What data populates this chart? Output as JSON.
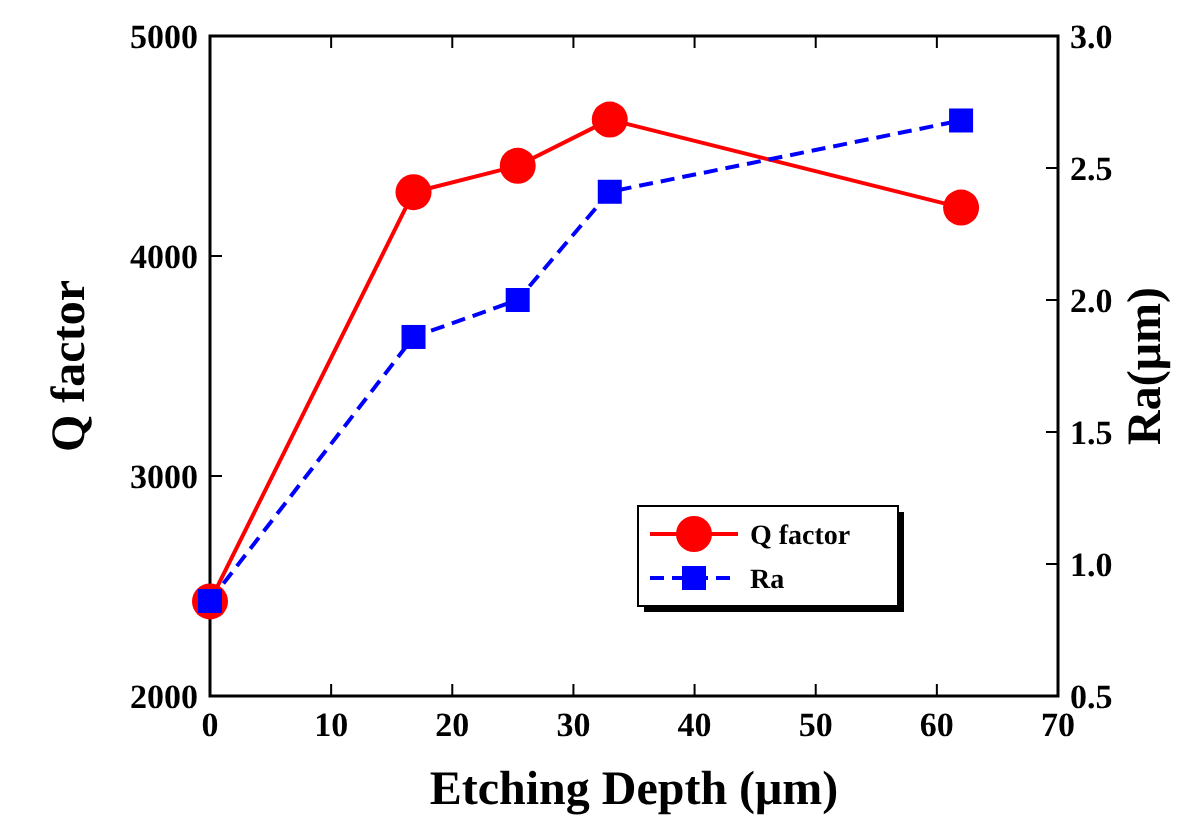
{
  "chart_data": {
    "type": "line",
    "xlabel": "Etching Depth (μm)",
    "ylabel": "Q factor",
    "y2label": "Ra(μm)",
    "xlim": [
      0,
      70
    ],
    "xticks": [
      0,
      10,
      20,
      30,
      40,
      50,
      60,
      70
    ],
    "ylim": [
      2000,
      5000
    ],
    "yticks": [
      2000,
      3000,
      4000,
      5000
    ],
    "y2lim": [
      0.5,
      3.0
    ],
    "y2ticks": [
      {
        "value": 0.5,
        "label": "0.5"
      },
      {
        "value": 1,
        "label": "1.0"
      },
      {
        "value": 1.5,
        "label": "1.5"
      },
      {
        "value": 2,
        "label": "2.0"
      },
      {
        "value": 2.5,
        "label": "2.5"
      },
      {
        "value": 3,
        "label": "3.0"
      }
    ],
    "legend": "bottom right",
    "grid": false,
    "series": [
      {
        "name": "Q factor",
        "color": "#ff0000",
        "x": [
          0,
          16.8,
          25.4,
          33,
          62
        ],
        "values": [
          2430,
          4290,
          4410,
          4620,
          4220
        ],
        "marker": "circle",
        "line_style": "solid"
      },
      {
        "name": "Ra",
        "color": "#0000ff",
        "x": [
          0,
          16.8,
          25.4,
          33,
          62
        ],
        "values": [
          0.86,
          1.86,
          2.0,
          2.41,
          2.68
        ],
        "marker": "square",
        "line_style": "dashed",
        "axis": "y2"
      }
    ]
  }
}
